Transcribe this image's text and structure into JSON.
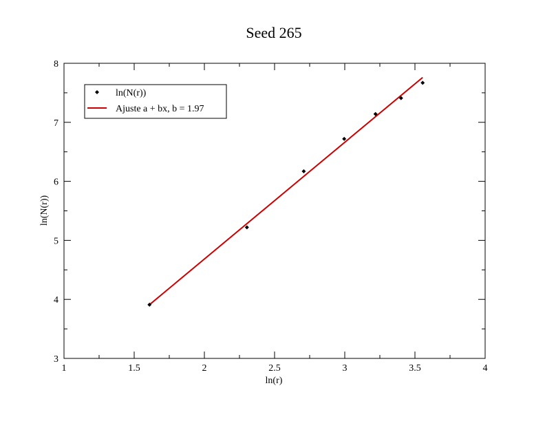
{
  "chart_data": {
    "type": "scatter",
    "title": "Seed 265",
    "xlabel": "ln(r)",
    "ylabel": "ln(N(r))",
    "xlim": [
      1,
      4
    ],
    "ylim": [
      3,
      8
    ],
    "x_ticks": [
      "1",
      "1.5",
      "2",
      "2.5",
      "3",
      "3.5",
      "4"
    ],
    "y_ticks": [
      "3",
      "4",
      "5",
      "6",
      "7",
      "8"
    ],
    "grid": false,
    "legend_position": "top-left",
    "series": [
      {
        "name": "ln(N(r))",
        "kind": "points",
        "color": "#000000",
        "x": [
          1.609,
          2.303,
          2.708,
          2.996,
          3.219,
          3.401,
          3.555
        ],
        "y": [
          3.91,
          5.22,
          6.17,
          6.72,
          7.14,
          7.41,
          7.67
        ]
      },
      {
        "name": "Ajuste a + bx, b = 1.97",
        "kind": "line",
        "color": "#cc0000",
        "x": [
          1.609,
          3.555
        ],
        "y": [
          3.91,
          7.76
        ]
      }
    ]
  }
}
